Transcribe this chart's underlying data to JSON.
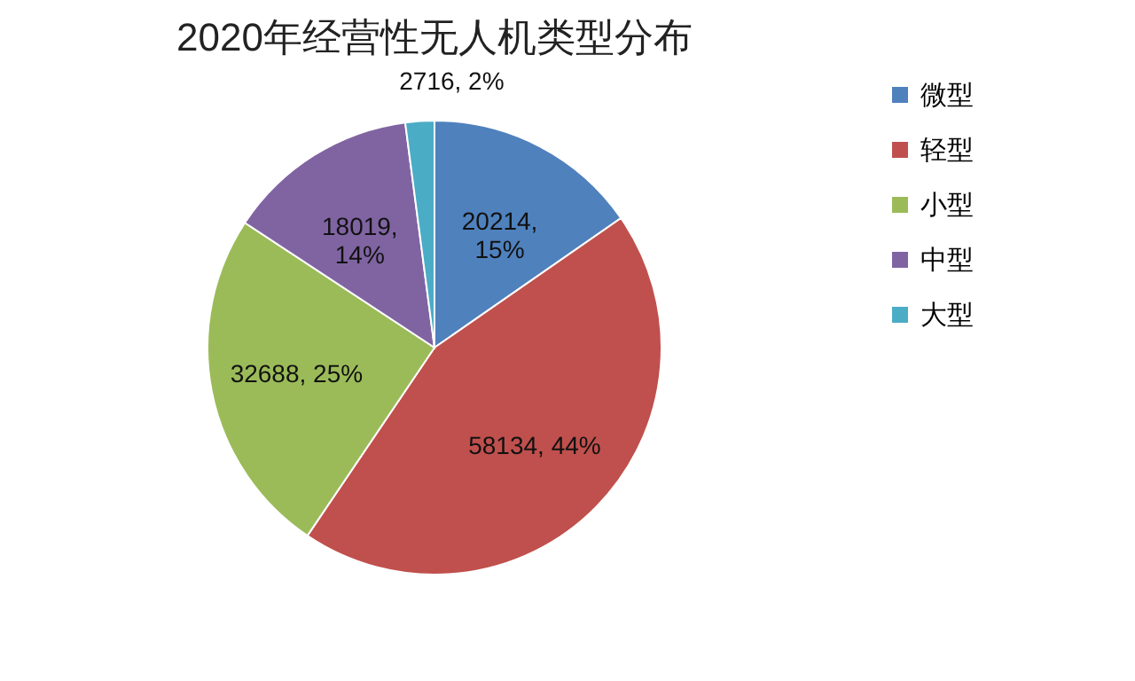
{
  "chart_data": {
    "type": "pie",
    "title": "2020年经营性无人机类型分布",
    "categories": [
      "微型",
      "轻型",
      "小型",
      "中型",
      "大型"
    ],
    "values": [
      20214,
      58134,
      32688,
      18019,
      2716
    ],
    "value_labels": [
      "20214, 15%",
      "58134, 44%",
      "32688, 25%",
      "18019, 14%",
      "2716, 2%"
    ],
    "colors": [
      "#4f81bd",
      "#c0504d",
      "#9bbb59",
      "#8064a2",
      "#4bacc6"
    ],
    "legend": "right"
  }
}
